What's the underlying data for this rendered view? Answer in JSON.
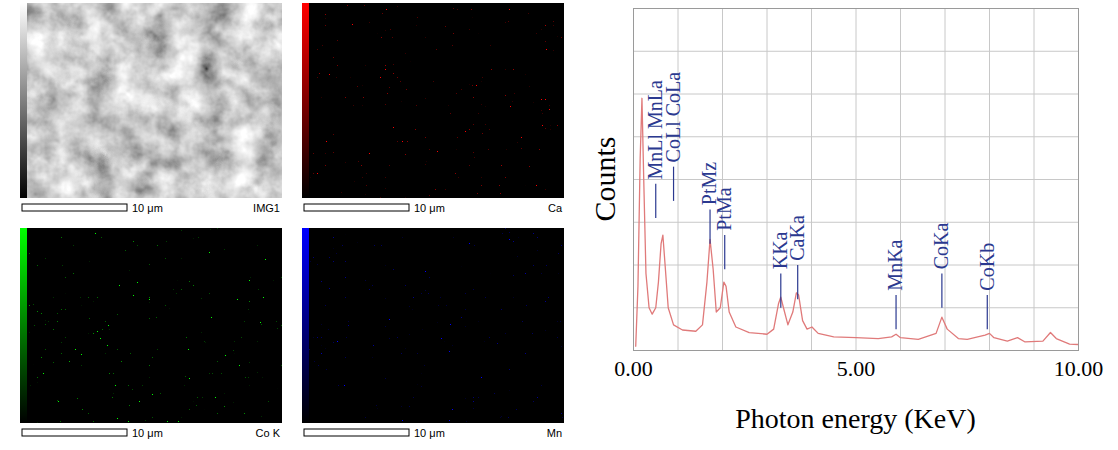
{
  "panels": [
    {
      "label": "IMG1",
      "scale_bar": "10 μm",
      "color": "#808080"
    },
    {
      "label": "Ca",
      "scale_bar": "10 μm",
      "color": "#ff0000"
    },
    {
      "label": "Co K",
      "scale_bar": "10 μm",
      "color": "#00ff00"
    },
    {
      "label": "Mn",
      "scale_bar": "10 μm",
      "color": "#0000ff"
    }
  ],
  "chart_data": {
    "type": "line",
    "x_label": "Photon energy (KeV)",
    "y_label": "Counts",
    "x": [
      0.05,
      0.1,
      0.15,
      0.19,
      0.23,
      0.28,
      0.35,
      0.42,
      0.5,
      0.56,
      0.62,
      0.66,
      0.71,
      0.78,
      0.9,
      1.1,
      1.4,
      1.55,
      1.65,
      1.72,
      1.79,
      1.86,
      1.95,
      2.03,
      2.08,
      2.15,
      2.3,
      2.6,
      3.0,
      3.15,
      3.26,
      3.31,
      3.37,
      3.47,
      3.58,
      3.66,
      3.71,
      3.8,
      3.9,
      4.01,
      4.15,
      4.5,
      5.0,
      5.5,
      5.8,
      5.9,
      6.0,
      6.4,
      6.8,
      6.93,
      7.05,
      7.3,
      7.5,
      7.9,
      8.0,
      8.1,
      8.4,
      8.63,
      8.8,
      9.2,
      9.37,
      9.5,
      9.8,
      10.0
    ],
    "values": [
      0.1,
      1.5,
      4.5,
      5.9,
      4.0,
      1.8,
      1.0,
      0.85,
      1.0,
      1.6,
      2.5,
      2.7,
      2.0,
      1.0,
      0.6,
      0.48,
      0.45,
      0.6,
      1.6,
      2.6,
      1.9,
      0.9,
      1.0,
      1.6,
      1.5,
      0.9,
      0.55,
      0.42,
      0.38,
      0.5,
      1.1,
      1.25,
      1.0,
      0.6,
      0.9,
      1.35,
      1.3,
      0.7,
      0.5,
      0.55,
      0.4,
      0.32,
      0.3,
      0.28,
      0.32,
      0.38,
      0.3,
      0.26,
      0.4,
      0.78,
      0.5,
      0.28,
      0.26,
      0.36,
      0.4,
      0.3,
      0.22,
      0.3,
      0.2,
      0.22,
      0.42,
      0.28,
      0.15,
      0.14
    ],
    "color": "#e07a7a",
    "xlim": [
      0,
      10
    ],
    "xticks": [
      {
        "value": 0,
        "label": "0.00"
      },
      {
        "value": 5,
        "label": "5.00"
      },
      {
        "value": 10,
        "label": "10.00"
      }
    ],
    "ylim": [
      0,
      8
    ],
    "yticks": [
      0,
      1,
      2,
      3,
      4,
      5,
      6,
      7,
      8
    ],
    "grid": true,
    "tick_labels": "x",
    "annotations": [
      {
        "text": "MnLl MnLa",
        "x": 0.5,
        "y": 4.0
      },
      {
        "text": "CoLl CoLa",
        "x": 0.9,
        "y": 4.4
      },
      {
        "text": "PtMz",
        "x": 1.72,
        "y": 3.4
      },
      {
        "text": "PtMa",
        "x": 2.05,
        "y": 2.8
      },
      {
        "text": "KKa",
        "x": 3.31,
        "y": 1.9
      },
      {
        "text": "CaKa",
        "x": 3.69,
        "y": 2.1
      },
      {
        "text": "MnKa",
        "x": 5.9,
        "y": 1.4
      },
      {
        "text": "CoKa",
        "x": 6.93,
        "y": 1.9
      },
      {
        "text": "CoKb",
        "x": 7.95,
        "y": 1.4
      }
    ]
  }
}
